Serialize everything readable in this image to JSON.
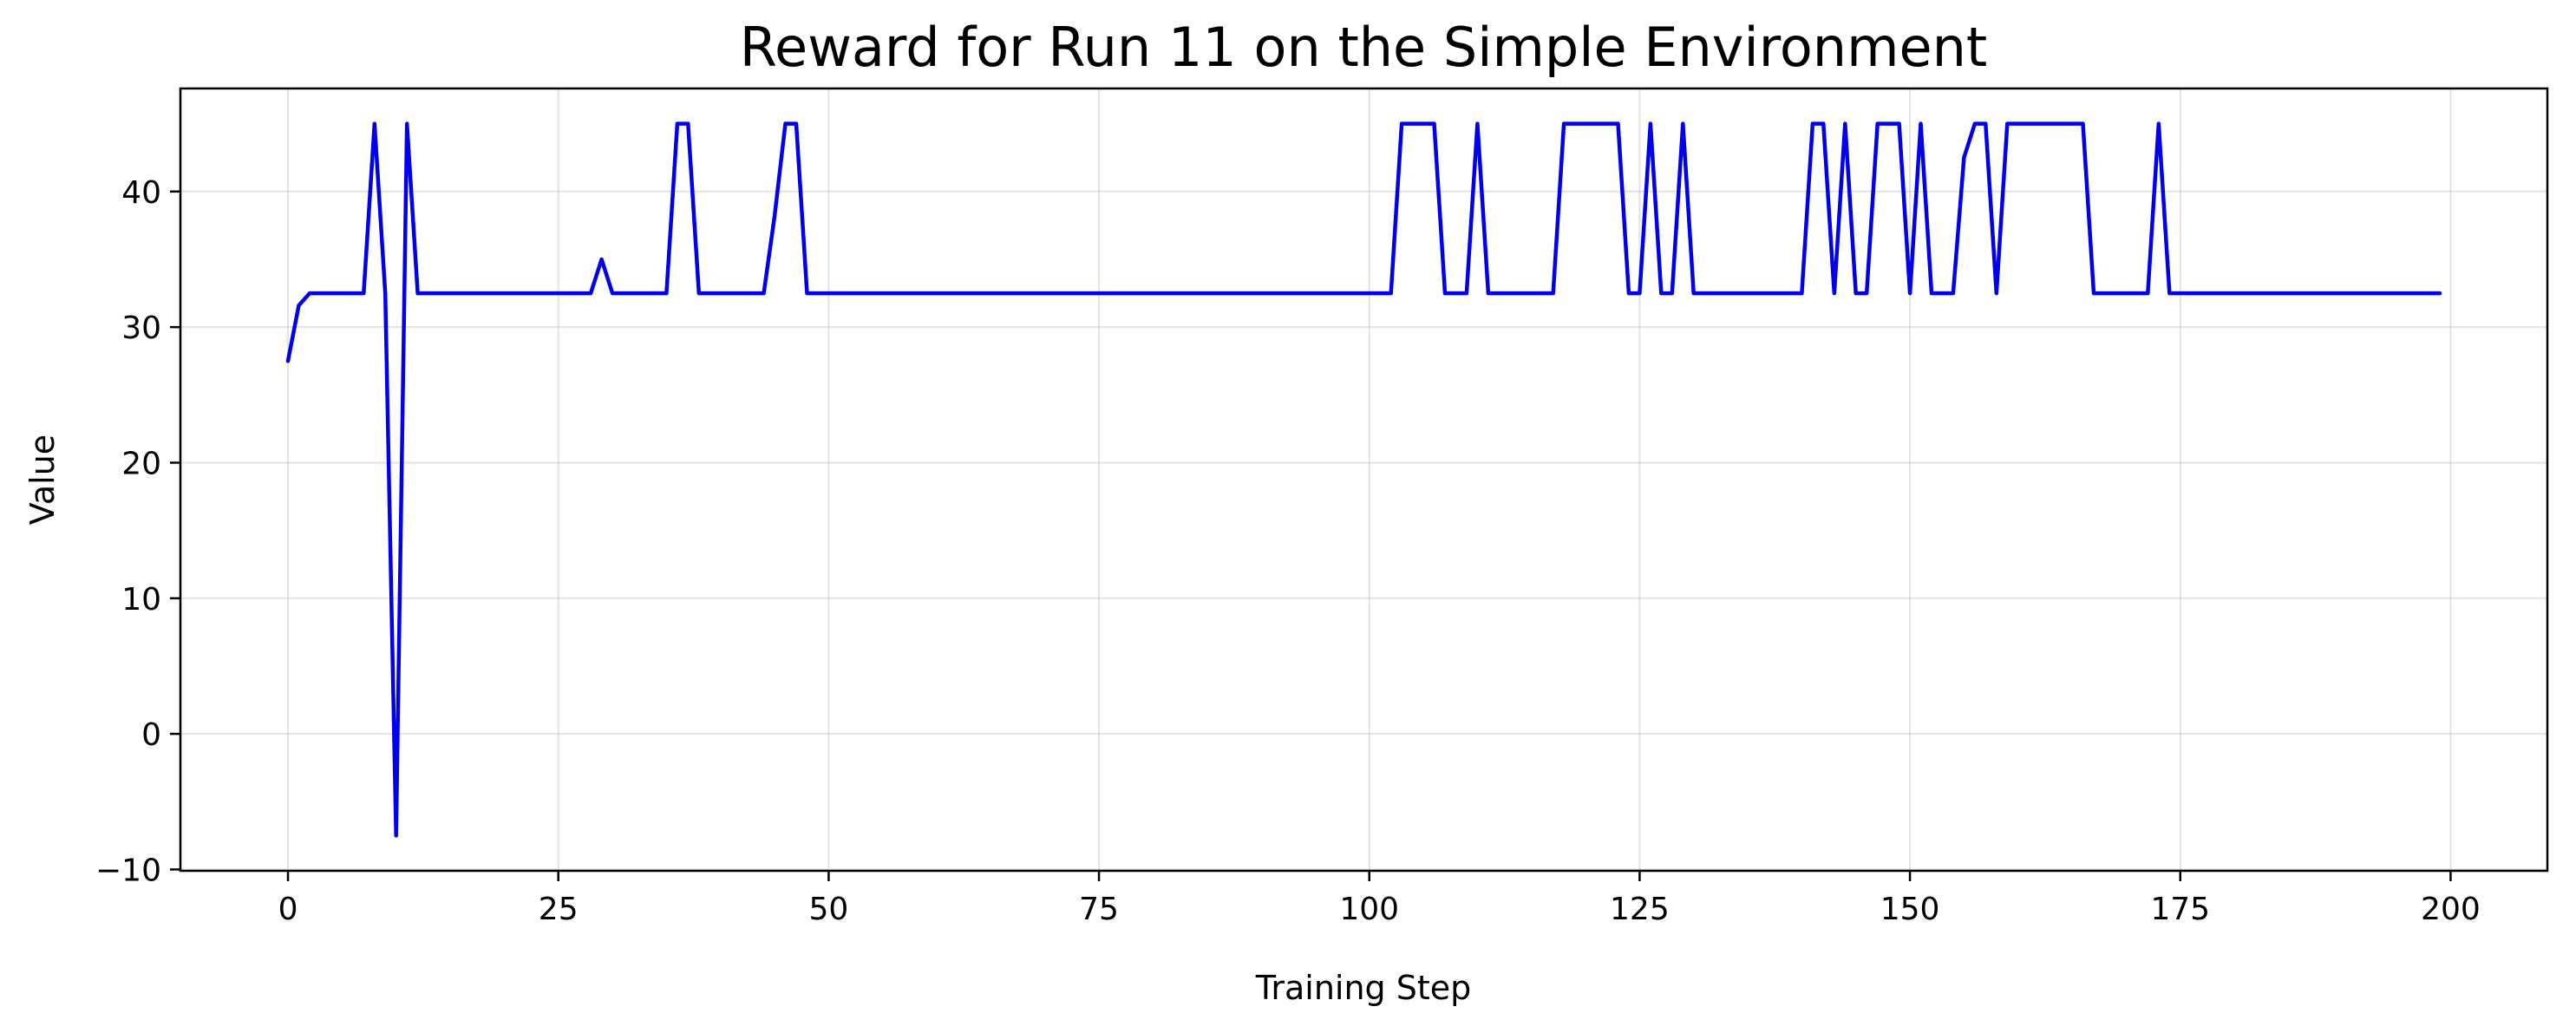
{
  "chart_data": {
    "type": "line",
    "title": "Reward for Run 11 on the Simple Environment",
    "xlabel": "Training Step",
    "ylabel": "Value",
    "xlim": [
      -9.95,
      208.95
    ],
    "ylim": [
      -10.1,
      47.6
    ],
    "xticks": [
      0,
      25,
      50,
      75,
      100,
      125,
      150,
      175,
      200
    ],
    "yticks": [
      -10,
      0,
      10,
      20,
      30,
      40
    ],
    "grid": true,
    "legend": false,
    "series": [
      {
        "color": "#0000ee",
        "x": [
          0,
          1,
          2,
          3,
          4,
          5,
          6,
          7,
          8,
          9,
          10,
          11,
          12,
          13,
          28,
          29,
          30,
          31,
          35,
          36,
          37,
          38,
          44,
          45,
          46,
          47,
          48,
          102,
          103,
          104,
          105,
          106,
          107,
          108,
          109,
          110,
          111,
          117,
          118,
          119,
          120,
          121,
          122,
          123,
          124,
          125,
          126,
          127,
          128,
          129,
          130,
          140,
          141,
          142,
          143,
          144,
          145,
          146,
          147,
          148,
          149,
          150,
          151,
          152,
          153,
          154,
          155,
          156,
          157,
          158,
          159,
          160,
          161,
          162,
          163,
          164,
          165,
          166,
          167,
          168,
          172,
          173,
          174,
          199
        ],
        "y": [
          27.5,
          31.6,
          32.5,
          32.5,
          32.5,
          32.5,
          32.5,
          32.5,
          45,
          32.5,
          -7.5,
          45,
          32.5,
          32.5,
          32.5,
          35,
          32.5,
          32.5,
          32.5,
          45,
          45,
          32.5,
          32.5,
          38.2,
          45,
          45,
          32.5,
          32.5,
          45,
          45,
          45,
          45,
          32.5,
          32.5,
          32.5,
          45,
          32.5,
          32.5,
          45,
          45,
          45,
          45,
          45,
          45,
          32.5,
          32.5,
          45,
          32.5,
          32.5,
          45,
          32.5,
          32.5,
          45,
          45,
          32.5,
          45,
          32.5,
          32.5,
          45,
          45,
          45,
          32.5,
          45,
          32.5,
          32.5,
          32.5,
          42.5,
          45,
          45,
          32.5,
          45,
          45,
          45,
          45,
          45,
          45,
          45,
          45,
          32.5,
          32.5,
          32.5,
          45,
          32.5,
          32.5
        ]
      }
    ]
  }
}
